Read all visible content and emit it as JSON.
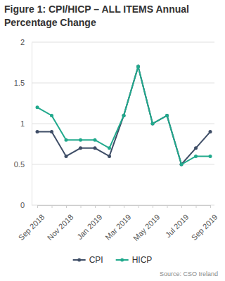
{
  "chart_data": {
    "type": "line",
    "title": "Figure 1: CPI/HICP – ALL ITEMS Annual Percentage Change",
    "source": "Source: CSO Ireland",
    "categories": [
      "Sep 2018",
      null,
      "Nov 2018",
      null,
      "Jan 2019",
      null,
      "Mar 2019",
      null,
      "May 2019",
      null,
      "Jul 2019",
      null,
      "Sep 2019"
    ],
    "series": [
      {
        "name": "CPI",
        "color": "#3e4d66",
        "marker": "circle",
        "line_style": "solid",
        "values": [
          0.9,
          0.9,
          0.6,
          0.7,
          0.7,
          0.6,
          1.1,
          1.7,
          1.0,
          1.1,
          0.5,
          0.7,
          0.9
        ]
      },
      {
        "name": "HICP",
        "color": "#20a98c",
        "marker": "circle",
        "line_style": "solid",
        "values": [
          1.2,
          1.1,
          0.8,
          0.8,
          0.8,
          0.7,
          1.1,
          1.7,
          1.0,
          1.1,
          0.5,
          0.6,
          0.6
        ]
      }
    ],
    "ylim": [
      0,
      2
    ],
    "yticks": [
      0,
      0.5,
      1,
      1.5,
      2
    ],
    "grid": true,
    "legend": "bottom"
  }
}
